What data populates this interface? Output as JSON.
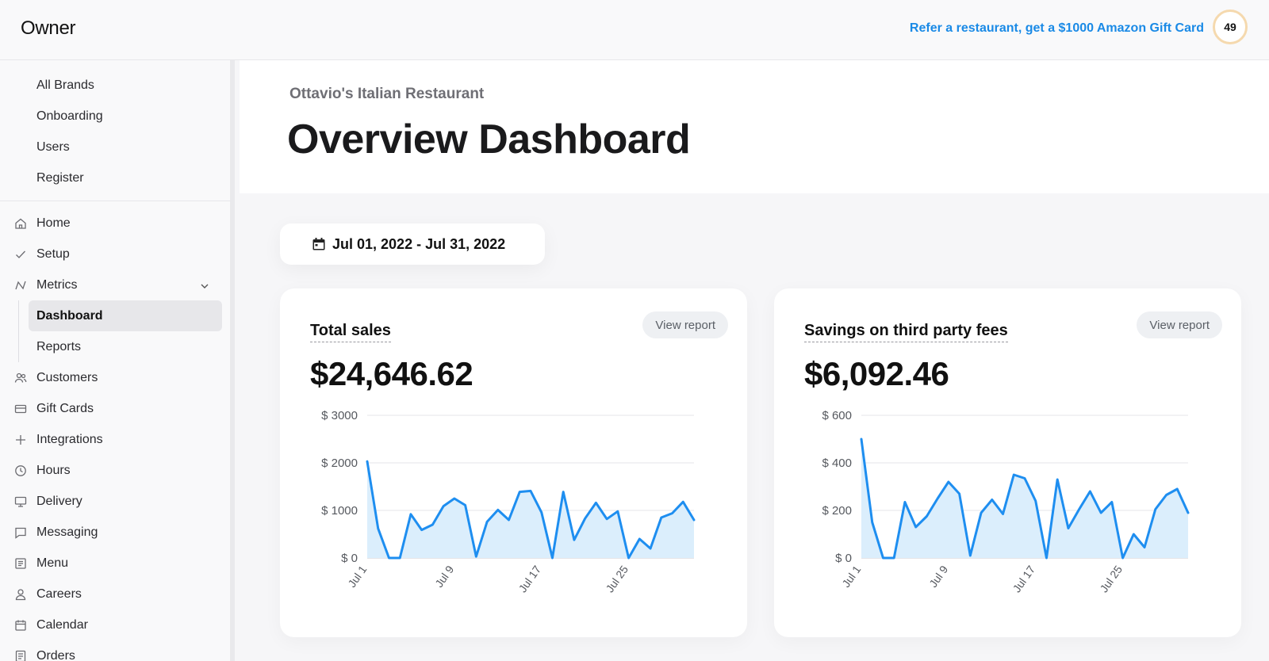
{
  "topbar": {
    "brand": "Owner",
    "refer_link": "Refer a restaurant, get a $1000 Amazon Gift Card",
    "score": "49"
  },
  "sidebar": {
    "top_items": [
      {
        "label": "All Brands"
      },
      {
        "label": "Onboarding"
      },
      {
        "label": "Users"
      },
      {
        "label": "Register"
      }
    ],
    "items": [
      {
        "label": "Home",
        "icon": "home-icon"
      },
      {
        "label": "Setup",
        "icon": "check-icon"
      },
      {
        "label": "Metrics",
        "icon": "metrics-icon"
      },
      {
        "label": "Dashboard"
      },
      {
        "label": "Reports"
      },
      {
        "label": "Customers",
        "icon": "customers-icon"
      },
      {
        "label": "Gift Cards",
        "icon": "gift-card-icon"
      },
      {
        "label": "Integrations",
        "icon": "plus-icon"
      },
      {
        "label": "Hours",
        "icon": "clock-icon"
      },
      {
        "label": "Delivery",
        "icon": "delivery-icon"
      },
      {
        "label": "Messaging",
        "icon": "message-icon"
      },
      {
        "label": "Menu",
        "icon": "menu-icon"
      },
      {
        "label": "Careers",
        "icon": "careers-icon"
      },
      {
        "label": "Calendar",
        "icon": "calendar-icon"
      },
      {
        "label": "Orders",
        "icon": "orders-icon"
      }
    ]
  },
  "header": {
    "restaurant": "Ottavio's Italian Restaurant",
    "title": "Overview Dashboard"
  },
  "date_range": "Jul 01, 2022 - Jul 31, 2022",
  "colors": {
    "accent": "#1a8ae6",
    "line": "#1e8ef0",
    "area": "#dbeefc"
  },
  "cards": [
    {
      "title": "Total sales",
      "button": "View report",
      "value": "$24,646.62"
    },
    {
      "title": "Savings on third party fees",
      "button": "View report",
      "value": "$6,092.46"
    }
  ],
  "chart_data": [
    {
      "type": "area",
      "title": "Total sales",
      "x_ticks": [
        "Jul 1",
        "Jul 9",
        "Jul 17",
        "Jul 25"
      ],
      "x_tick_days": [
        1,
        9,
        17,
        25
      ],
      "x": [
        1,
        2,
        3,
        4,
        5,
        6,
        7,
        8,
        9,
        10,
        11,
        12,
        13,
        14,
        15,
        16,
        17,
        18,
        19,
        20,
        21,
        22,
        23,
        24,
        25,
        26,
        27,
        28,
        29,
        30,
        31
      ],
      "values": [
        2030,
        620,
        0,
        0,
        920,
        590,
        700,
        1090,
        1250,
        1110,
        30,
        760,
        1010,
        800,
        1390,
        1410,
        960,
        0,
        1390,
        380,
        830,
        1160,
        820,
        980,
        0,
        400,
        200,
        850,
        940,
        1180,
        800
      ],
      "y_ticks": [
        "$ 0",
        "$ 1000",
        "$ 2000",
        "$ 3000"
      ],
      "ylim": [
        0,
        3000
      ],
      "grid": true
    },
    {
      "type": "area",
      "title": "Savings on third party fees",
      "x_ticks": [
        "Jul 1",
        "Jul 9",
        "Jul 17",
        "Jul 25"
      ],
      "x_tick_days": [
        1,
        9,
        17,
        25
      ],
      "x": [
        1,
        2,
        3,
        4,
        5,
        6,
        7,
        8,
        9,
        10,
        11,
        12,
        13,
        14,
        15,
        16,
        17,
        18,
        19,
        20,
        21,
        22,
        23,
        24,
        25,
        26,
        27,
        28,
        29,
        30,
        31
      ],
      "values": [
        500,
        150,
        0,
        0,
        235,
        130,
        175,
        250,
        320,
        270,
        10,
        190,
        245,
        185,
        350,
        335,
        240,
        0,
        330,
        125,
        205,
        280,
        190,
        235,
        0,
        100,
        45,
        205,
        265,
        290,
        190
      ],
      "y_ticks": [
        "$ 0",
        "$ 200",
        "$ 400",
        "$ 600"
      ],
      "ylim": [
        0,
        600
      ],
      "grid": true
    }
  ]
}
